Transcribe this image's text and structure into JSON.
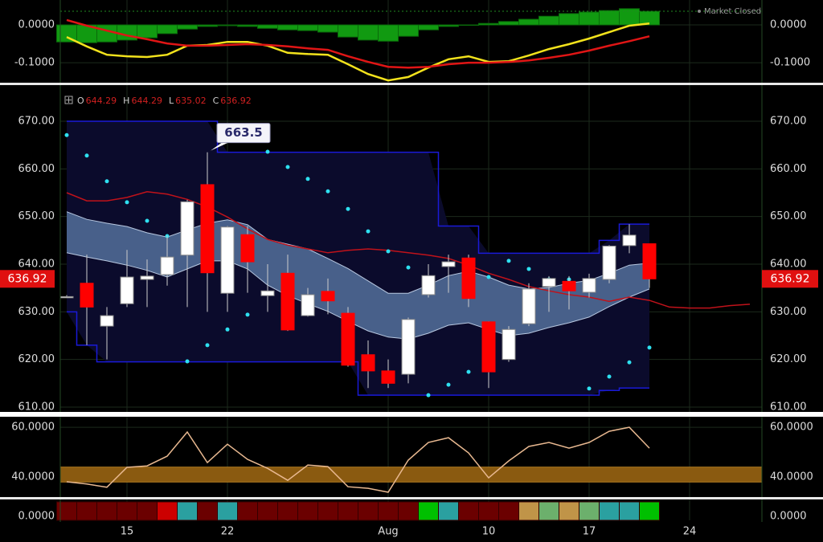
{
  "status": "Market Closed",
  "x_axis": {
    "ticks": [
      {
        "value": 3,
        "label": "15"
      },
      {
        "value": 8,
        "label": "22"
      },
      {
        "value": 16,
        "label": "Aug"
      },
      {
        "value": 21,
        "label": "10"
      },
      {
        "value": 26,
        "label": "17"
      },
      {
        "value": 31,
        "label": "24"
      }
    ]
  },
  "chart_data": [
    {
      "type": "macd",
      "ylim": [
        -0.153,
        0.066
      ],
      "yticks": [
        {
          "value": 0,
          "label": "0.0000"
        },
        {
          "value": -0.1,
          "label": "-0.1000"
        }
      ],
      "grid": true,
      "histogram": {
        "color": "#119a11",
        "values": [
          -0.045,
          -0.047,
          -0.045,
          -0.04,
          -0.034,
          -0.023,
          -0.011,
          -0.004,
          -0.002,
          -0.004,
          -0.009,
          -0.013,
          -0.015,
          -0.019,
          -0.032,
          -0.04,
          -0.043,
          -0.03,
          -0.013,
          -0.004,
          0,
          0.004,
          0.009,
          0.015,
          0.023,
          0.03,
          0.034,
          0.038,
          0.043,
          0.036
        ]
      },
      "series": [
        {
          "color": "#f2e21c",
          "values": [
            -0.032,
            -0.057,
            -0.079,
            -0.083,
            -0.085,
            -0.079,
            -0.055,
            -0.053,
            -0.045,
            -0.045,
            -0.055,
            -0.074,
            -0.077,
            -0.079,
            -0.104,
            -0.13,
            -0.147,
            -0.138,
            -0.113,
            -0.091,
            -0.083,
            -0.098,
            -0.096,
            -0.081,
            -0.064,
            -0.051,
            -0.036,
            -0.019,
            -0.002,
            0.004
          ]
        },
        {
          "color": "#e01515",
          "values": [
            0.013,
            -0.002,
            -0.015,
            -0.028,
            -0.038,
            -0.049,
            -0.055,
            -0.055,
            -0.053,
            -0.051,
            -0.053,
            -0.057,
            -0.062,
            -0.066,
            -0.083,
            -0.098,
            -0.111,
            -0.113,
            -0.111,
            -0.104,
            -0.1,
            -0.1,
            -0.098,
            -0.094,
            -0.087,
            -0.079,
            -0.068,
            -0.055,
            -0.043,
            -0.03
          ]
        }
      ]
    },
    {
      "type": "candlestick",
      "ylim": [
        609.16,
        677.25
      ],
      "yticks": [
        {
          "value": 610,
          "label": "610.00"
        },
        {
          "value": 620,
          "label": "620.00"
        },
        {
          "value": 630,
          "label": "630.00"
        },
        {
          "value": 640,
          "label": "640.00"
        },
        {
          "value": 650,
          "label": "650.00"
        },
        {
          "value": 660,
          "label": "660.00"
        },
        {
          "value": 670,
          "label": "670.00"
        }
      ],
      "grid": true,
      "up_color": "#ffffff",
      "down_color": "#ff0000",
      "ohlc_keys": [
        "O",
        "H",
        "L",
        "C"
      ],
      "open": [
        633.2,
        636,
        627,
        631.7,
        636.8,
        637.8,
        641.9,
        656.7,
        633.9,
        646.2,
        633.4,
        638.1,
        629.2,
        634.3,
        629.7,
        621,
        617.6,
        616.9,
        633.6,
        639.5,
        641.3,
        627.9,
        620,
        627.5,
        635.3,
        636.4,
        634.1,
        636.8,
        643.9,
        644.29
      ],
      "high": [
        633.5,
        642,
        631,
        643,
        641,
        646,
        653.5,
        663.5,
        648,
        648,
        640,
        642,
        635,
        637,
        631,
        624,
        620,
        628.8,
        640,
        642,
        642,
        628,
        627,
        636,
        637.5,
        637.5,
        638,
        644,
        648.38,
        644.29
      ],
      "low": [
        632.9,
        623,
        620,
        631,
        631,
        635.5,
        631,
        630,
        630,
        634,
        630,
        626,
        629,
        629.5,
        618.5,
        614,
        614,
        615,
        633,
        634,
        631,
        614,
        619.5,
        627,
        630,
        630.5,
        633,
        636,
        642.3,
        635.02
      ],
      "close": [
        633.2,
        631,
        629.2,
        637.3,
        637.5,
        641.5,
        653.1,
        638.2,
        647.8,
        640.5,
        634.4,
        626.2,
        633.6,
        632.3,
        618.8,
        617.6,
        615,
        628.4,
        637.6,
        640.5,
        632.8,
        617.4,
        626.3,
        634.8,
        637,
        634.4,
        637,
        643.8,
        646.1,
        636.92
      ],
      "channel": {
        "color": "#1a1ad8",
        "fill": "#0b0b2c",
        "upper": [
          670,
          670,
          670,
          670,
          670,
          670,
          670,
          670,
          663.5,
          663.5,
          663.5,
          663.5,
          663.5,
          663.5,
          663.5,
          663.5,
          663.5,
          663.5,
          663.5,
          648,
          648,
          642.3,
          642.3,
          642.3,
          642.3,
          642.3,
          642.3,
          645,
          648.4,
          648.4
        ],
        "lower": [
          630,
          623,
          619.5,
          619.5,
          619.5,
          619.5,
          619.5,
          619.5,
          619.5,
          619.5,
          619.5,
          619.5,
          619.5,
          619.5,
          619.5,
          612.5,
          612.5,
          612.5,
          612.5,
          612.5,
          612.5,
          612.5,
          612.5,
          612.5,
          612.5,
          612.5,
          612.5,
          613.5,
          614,
          614
        ]
      },
      "band": {
        "color": "#5d7eaa",
        "stroke": "#b8c8e0",
        "upper": [
          651,
          649.4,
          648.6,
          647.9,
          646.6,
          645.7,
          647.2,
          648.6,
          649.3,
          648.3,
          645.2,
          644.2,
          643.2,
          641.2,
          639.1,
          636.5,
          633.9,
          633.9,
          635.6,
          637.6,
          638.5,
          637.3,
          635.6,
          634.8,
          635.1,
          636,
          636.6,
          638.1,
          639.8,
          640.2
        ],
        "lower": [
          642.4,
          641.5,
          640.7,
          639.8,
          638.7,
          637.3,
          639,
          640.7,
          640.7,
          639,
          635.6,
          633.4,
          631.7,
          630.1,
          628,
          626,
          624.7,
          624.3,
          625.5,
          627.2,
          627.7,
          626.3,
          625,
          625.5,
          626.7,
          627.7,
          628.9,
          631.1,
          633.1,
          634.8
        ]
      },
      "ma": {
        "color": "#c0121a",
        "values": [
          655,
          653.3,
          653.3,
          654,
          655.2,
          654.7,
          653.6,
          652,
          649.9,
          647.4,
          645.2,
          644,
          643.2,
          642.4,
          642.9,
          643.2,
          642.9,
          642.4,
          641.9,
          641.2,
          639.8,
          638.1,
          636.8,
          635.3,
          634.4,
          633.6,
          633.1,
          632.2,
          633.1,
          632.4,
          631,
          630.8,
          630.8,
          631.3,
          631.6
        ]
      },
      "sar": {
        "color": "#2ee0f0",
        "values": [
          667.1,
          662.8,
          657.4,
          653,
          649.1,
          645.9,
          619.6,
          623,
          626.3,
          629.4,
          663.6,
          660.4,
          657.9,
          655.3,
          651.6,
          646.9,
          642.7,
          639.3,
          612.5,
          614.7,
          617.4,
          637.3,
          640.7,
          639,
          636.8,
          636.8,
          613.9,
          616.4,
          619.4,
          622.5
        ]
      }
    },
    {
      "type": "line",
      "ylim": [
        32.3,
        63.9
      ],
      "yticks": [
        {
          "value": 60,
          "label": "60.0000"
        },
        {
          "value": 40,
          "label": "40.0000"
        }
      ],
      "grid": true,
      "band": [
        38,
        44
      ],
      "band_color": "#8a5a10",
      "color": "#e8b890",
      "values": [
        38.1,
        37.2,
        35.9,
        43.9,
        44.5,
        48.4,
        58.1,
        45.8,
        53.2,
        47.1,
        43.5,
        38.7,
        44.8,
        44.2,
        36.1,
        35.5,
        33.9,
        46.8,
        53.9,
        55.8,
        49.7,
        39.7,
        46.5,
        52.3,
        53.9,
        51.6,
        53.9,
        58.4,
        60,
        51.6
      ]
    },
    {
      "type": "strip",
      "yticks": [
        {
          "value": 0,
          "label": "0.0000"
        }
      ],
      "colors": [
        "#6b0000",
        "#6b0000",
        "#6b0000",
        "#6b0000",
        "#6b0000",
        "#cc0000",
        "#2aa0a0",
        "#6b0000",
        "#2aa0a0",
        "#6b0000",
        "#6b0000",
        "#6b0000",
        "#6b0000",
        "#6b0000",
        "#6b0000",
        "#6b0000",
        "#6b0000",
        "#6b0000",
        "#00c000",
        "#2aa0a0",
        "#6b0000",
        "#6b0000",
        "#6b0000",
        "#c09448",
        "#6cb06c",
        "#c09448",
        "#6cb06c",
        "#2aa0a0",
        "#2aa0a0",
        "#00c000"
      ]
    }
  ]
}
